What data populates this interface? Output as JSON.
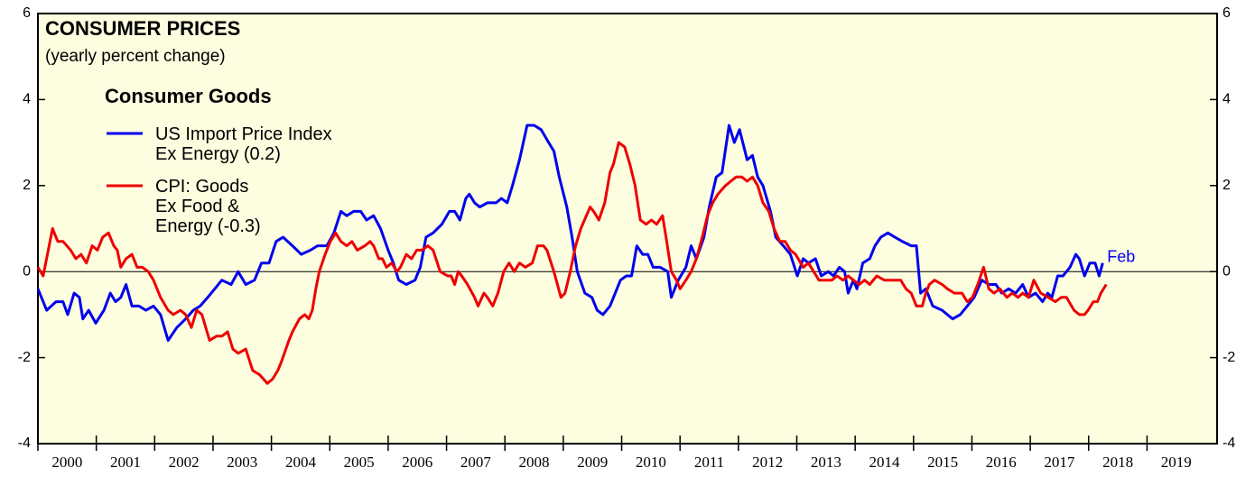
{
  "chart_data": {
    "type": "line",
    "title": "CONSUMER PRICES",
    "subtitle": "(yearly percent change)",
    "legend_title": "Consumer Goods",
    "annotation": "Feb",
    "xlim": [
      2000,
      2020.2
    ],
    "xticks": [
      2000,
      2001,
      2002,
      2003,
      2004,
      2005,
      2006,
      2007,
      2008,
      2009,
      2010,
      2011,
      2012,
      2013,
      2014,
      2015,
      2016,
      2017,
      2018,
      2019
    ],
    "ylim": [
      -4,
      6
    ],
    "yticks": [
      -4,
      -2,
      0,
      2,
      4,
      6
    ],
    "zero_line": true,
    "series": [
      {
        "name": "US Import Price Index\nEx Energy (0.2)",
        "color": "#0000ee",
        "x": [
          2000.0,
          2000.15,
          2000.31,
          2000.43,
          2000.51,
          2000.62,
          2000.71,
          2000.77,
          2000.87,
          2000.99,
          2001.13,
          2001.24,
          2001.33,
          2001.42,
          2001.51,
          2001.61,
          2001.73,
          2001.85,
          2001.98,
          2002.1,
          2002.23,
          2002.38,
          2002.53,
          2002.66,
          2002.78,
          2002.91,
          2003.03,
          2003.15,
          2003.31,
          2003.43,
          2003.56,
          2003.71,
          2003.83,
          2003.96,
          2004.08,
          2004.2,
          2004.36,
          2004.51,
          2004.67,
          2004.79,
          2004.95,
          2005.07,
          2005.19,
          2005.29,
          2005.41,
          2005.53,
          2005.63,
          2005.75,
          2005.87,
          2006.0,
          2006.09,
          2006.18,
          2006.31,
          2006.46,
          2006.55,
          2006.65,
          2006.77,
          2006.92,
          2007.05,
          2007.14,
          2007.23,
          2007.33,
          2007.39,
          2007.48,
          2007.57,
          2007.7,
          2007.85,
          2007.94,
          2008.04,
          2008.13,
          2008.25,
          2008.38,
          2008.5,
          2008.62,
          2008.75,
          2008.84,
          2008.93,
          2009.06,
          2009.15,
          2009.24,
          2009.37,
          2009.49,
          2009.58,
          2009.68,
          2009.8,
          2009.89,
          2009.98,
          2010.08,
          2010.17,
          2010.26,
          2010.36,
          2010.45,
          2010.54,
          2010.66,
          2010.79,
          2010.85,
          2010.97,
          2011.1,
          2011.19,
          2011.28,
          2011.41,
          2011.5,
          2011.62,
          2011.72,
          2011.84,
          2011.93,
          2012.02,
          2012.15,
          2012.24,
          2012.33,
          2012.42,
          2012.55,
          2012.64,
          2012.77,
          2012.89,
          2013.01,
          2013.11,
          2013.2,
          2013.32,
          2013.42,
          2013.54,
          2013.63,
          2013.73,
          2013.82,
          2013.88,
          2013.97,
          2014.03,
          2014.13,
          2014.25,
          2014.34,
          2014.44,
          2014.56,
          2014.68,
          2014.81,
          2014.96,
          2015.05,
          2015.12,
          2015.21,
          2015.33,
          2015.49,
          2015.67,
          2015.8,
          2015.92,
          2016.04,
          2016.17,
          2016.29,
          2016.41,
          2016.51,
          2016.63,
          2016.75,
          2016.87,
          2016.97,
          2017.09,
          2017.21,
          2017.3,
          2017.37,
          2017.47,
          2017.56,
          2017.68,
          2017.78,
          2017.84,
          2017.93,
          2018.02,
          2018.11,
          2018.18,
          2018.24
        ],
        "values": [
          -0.4,
          -0.9,
          -0.7,
          -0.7,
          -1.0,
          -0.5,
          -0.6,
          -1.1,
          -0.9,
          -1.2,
          -0.9,
          -0.5,
          -0.7,
          -0.6,
          -0.3,
          -0.8,
          -0.8,
          -0.9,
          -0.8,
          -1.0,
          -1.6,
          -1.3,
          -1.1,
          -0.9,
          -0.8,
          -0.6,
          -0.4,
          -0.2,
          -0.3,
          0.0,
          -0.3,
          -0.2,
          0.2,
          0.2,
          0.7,
          0.8,
          0.6,
          0.4,
          0.5,
          0.6,
          0.6,
          0.9,
          1.4,
          1.3,
          1.4,
          1.4,
          1.2,
          1.3,
          1.0,
          0.5,
          0.2,
          -0.2,
          -0.3,
          -0.2,
          0.1,
          0.8,
          0.9,
          1.1,
          1.4,
          1.4,
          1.2,
          1.7,
          1.8,
          1.6,
          1.5,
          1.6,
          1.6,
          1.7,
          1.6,
          2.0,
          2.6,
          3.4,
          3.4,
          3.3,
          3.0,
          2.8,
          2.2,
          1.5,
          0.8,
          0.0,
          -0.5,
          -0.6,
          -0.9,
          -1.0,
          -0.8,
          -0.5,
          -0.2,
          -0.1,
          -0.1,
          0.6,
          0.4,
          0.4,
          0.1,
          0.1,
          0.0,
          -0.6,
          -0.2,
          0.1,
          0.6,
          0.3,
          0.8,
          1.5,
          2.2,
          2.3,
          3.4,
          3.0,
          3.3,
          2.6,
          2.7,
          2.2,
          2.0,
          1.4,
          0.8,
          0.6,
          0.4,
          -0.1,
          0.3,
          0.2,
          0.3,
          -0.1,
          0.0,
          -0.1,
          0.1,
          0.0,
          -0.5,
          -0.2,
          -0.4,
          0.2,
          0.3,
          0.6,
          0.8,
          0.9,
          0.8,
          0.7,
          0.6,
          0.6,
          -0.5,
          -0.4,
          -0.8,
          -0.9,
          -1.1,
          -1.0,
          -0.8,
          -0.6,
          -0.2,
          -0.3,
          -0.3,
          -0.5,
          -0.4,
          -0.5,
          -0.3,
          -0.6,
          -0.5,
          -0.7,
          -0.5,
          -0.6,
          -0.1,
          -0.1,
          0.1,
          0.4,
          0.3,
          -0.1,
          0.2,
          0.2,
          -0.1,
          0.2
        ]
      },
      {
        "name": "CPI: Goods\nEx Food &\nEnergy (-0.3)",
        "color": "#ee0000",
        "x": [
          2000.0,
          2000.09,
          2000.25,
          2000.34,
          2000.43,
          2000.56,
          2000.65,
          2000.74,
          2000.83,
          2000.93,
          2001.02,
          2001.11,
          2001.21,
          2001.3,
          2001.36,
          2001.42,
          2001.51,
          2001.61,
          2001.7,
          2001.79,
          2001.89,
          2001.98,
          2002.1,
          2002.23,
          2002.32,
          2002.44,
          2002.53,
          2002.63,
          2002.72,
          2002.81,
          2002.94,
          2003.06,
          2003.15,
          2003.25,
          2003.34,
          2003.43,
          2003.56,
          2003.68,
          2003.8,
          2003.93,
          2004.02,
          2004.11,
          2004.17,
          2004.3,
          2004.36,
          2004.48,
          2004.57,
          2004.64,
          2004.7,
          2004.76,
          2004.82,
          2004.92,
          2005.01,
          2005.1,
          2005.19,
          2005.29,
          2005.38,
          2005.47,
          2005.6,
          2005.69,
          2005.75,
          2005.84,
          2005.9,
          2005.97,
          2006.06,
          2006.15,
          2006.21,
          2006.31,
          2006.4,
          2006.49,
          2006.58,
          2006.68,
          2006.77,
          2006.89,
          2007.02,
          2007.08,
          2007.14,
          2007.2,
          2007.26,
          2007.36,
          2007.48,
          2007.54,
          2007.64,
          2007.7,
          2007.79,
          2007.88,
          2007.98,
          2008.07,
          2008.16,
          2008.25,
          2008.35,
          2008.47,
          2008.56,
          2008.66,
          2008.72,
          2008.84,
          2008.96,
          2009.03,
          2009.12,
          2009.21,
          2009.3,
          2009.46,
          2009.52,
          2009.61,
          2009.71,
          2009.8,
          2009.86,
          2009.95,
          2010.05,
          2010.14,
          2010.23,
          2010.32,
          2010.42,
          2010.51,
          2010.6,
          2010.7,
          2010.76,
          2010.85,
          2010.94,
          2011.0,
          2011.1,
          2011.19,
          2011.28,
          2011.38,
          2011.47,
          2011.56,
          2011.65,
          2011.78,
          2011.87,
          2011.96,
          2012.06,
          2012.15,
          2012.24,
          2012.33,
          2012.42,
          2012.52,
          2012.61,
          2012.71,
          2012.8,
          2012.89,
          2012.98,
          2013.11,
          2013.2,
          2013.29,
          2013.38,
          2013.51,
          2013.6,
          2013.69,
          2013.79,
          2013.88,
          2013.97,
          2014.07,
          2014.16,
          2014.25,
          2014.37,
          2014.5,
          2014.65,
          2014.78,
          2014.87,
          2014.96,
          2015.05,
          2015.15,
          2015.21,
          2015.27,
          2015.36,
          2015.49,
          2015.58,
          2015.7,
          2015.83,
          2015.92,
          2016.01,
          2016.1,
          2016.2,
          2016.29,
          2016.38,
          2016.48,
          2016.6,
          2016.69,
          2016.79,
          2016.87,
          2016.97,
          2017.06,
          2017.18,
          2017.31,
          2017.43,
          2017.53,
          2017.62,
          2017.75,
          2017.84,
          2017.93,
          2017.99,
          2018.08,
          2018.15,
          2018.21,
          2018.3
        ],
        "values": [
          0.1,
          -0.1,
          1.0,
          0.7,
          0.7,
          0.5,
          0.3,
          0.4,
          0.2,
          0.6,
          0.5,
          0.8,
          0.9,
          0.6,
          0.5,
          0.1,
          0.3,
          0.4,
          0.1,
          0.1,
          0.0,
          -0.2,
          -0.6,
          -0.9,
          -1.0,
          -0.9,
          -1.0,
          -1.3,
          -0.9,
          -1.0,
          -1.6,
          -1.5,
          -1.5,
          -1.4,
          -1.8,
          -1.9,
          -1.8,
          -2.3,
          -2.4,
          -2.6,
          -2.5,
          -2.3,
          -2.1,
          -1.6,
          -1.4,
          -1.1,
          -1.0,
          -1.1,
          -0.9,
          -0.4,
          0.0,
          0.4,
          0.7,
          0.9,
          0.7,
          0.6,
          0.7,
          0.5,
          0.6,
          0.7,
          0.6,
          0.3,
          0.3,
          0.1,
          0.2,
          0.0,
          0.1,
          0.4,
          0.3,
          0.5,
          0.5,
          0.6,
          0.5,
          0.0,
          -0.1,
          -0.1,
          -0.3,
          0.0,
          -0.1,
          -0.3,
          -0.6,
          -0.8,
          -0.5,
          -0.6,
          -0.8,
          -0.5,
          0.0,
          0.2,
          0.0,
          0.2,
          0.1,
          0.2,
          0.6,
          0.6,
          0.5,
          0.0,
          -0.6,
          -0.5,
          0.0,
          0.6,
          1.0,
          1.5,
          1.4,
          1.2,
          1.6,
          2.3,
          2.5,
          3.0,
          2.9,
          2.5,
          2.0,
          1.2,
          1.1,
          1.2,
          1.1,
          1.3,
          0.8,
          0.0,
          -0.2,
          -0.4,
          -0.2,
          0.0,
          0.3,
          0.8,
          1.3,
          1.6,
          1.8,
          2.0,
          2.1,
          2.2,
          2.2,
          2.1,
          2.2,
          2.0,
          1.6,
          1.4,
          1.0,
          0.7,
          0.7,
          0.5,
          0.4,
          0.1,
          0.2,
          0.0,
          -0.2,
          -0.2,
          -0.2,
          -0.1,
          -0.2,
          -0.1,
          -0.2,
          -0.3,
          -0.2,
          -0.3,
          -0.1,
          -0.2,
          -0.2,
          -0.2,
          -0.4,
          -0.5,
          -0.8,
          -0.8,
          -0.5,
          -0.3,
          -0.2,
          -0.3,
          -0.4,
          -0.5,
          -0.5,
          -0.7,
          -0.6,
          -0.3,
          0.1,
          -0.4,
          -0.5,
          -0.4,
          -0.6,
          -0.5,
          -0.6,
          -0.5,
          -0.6,
          -0.2,
          -0.5,
          -0.6,
          -0.7,
          -0.6,
          -0.6,
          -0.9,
          -1.0,
          -1.0,
          -0.9,
          -0.7,
          -0.7,
          -0.5,
          -0.3
        ]
      }
    ]
  }
}
